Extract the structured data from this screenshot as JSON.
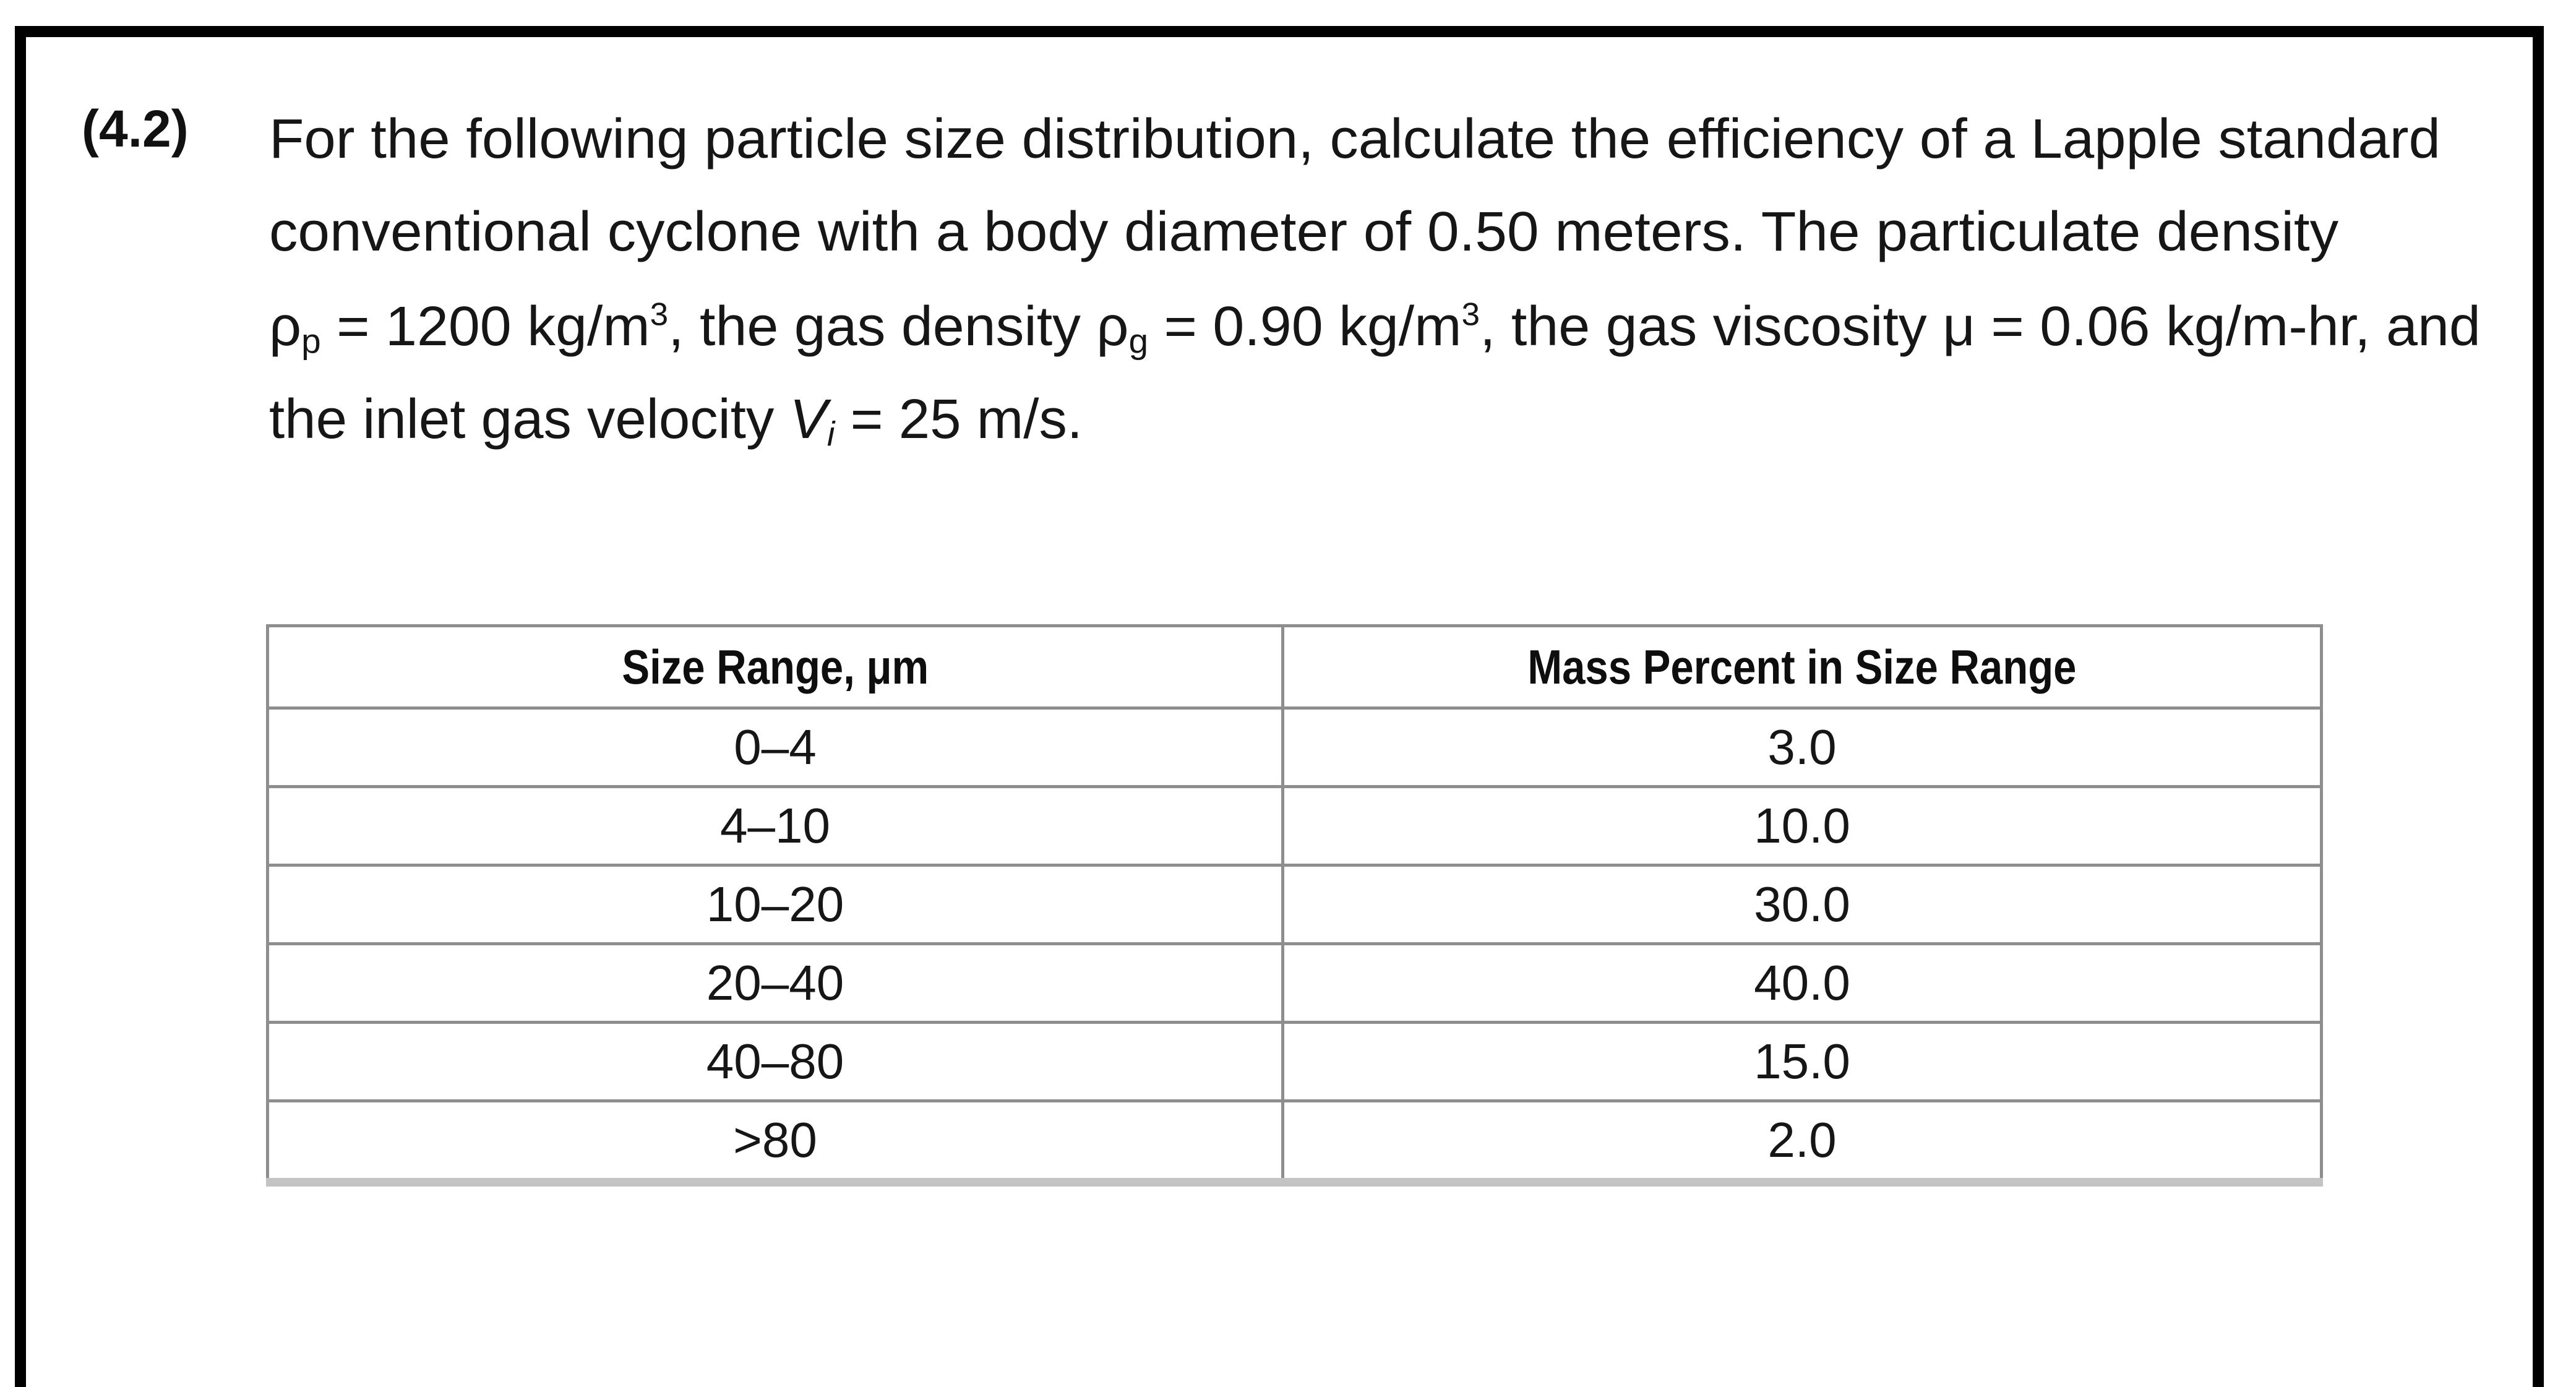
{
  "problem": {
    "label": "(4.2)",
    "lines": [
      [
        {
          "t": "For the following particle size distribution, calculate the efficiency of a Lapple standard"
        }
      ],
      [
        {
          "t": "conventional cyclone with a body diameter of 0.50 meters. The particulate density"
        }
      ],
      [
        {
          "t": "ρ"
        },
        {
          "t": "p",
          "sub": true
        },
        {
          "t": " = 1200 kg/m"
        },
        {
          "t": "3",
          "sup": true
        },
        {
          "t": ", the gas density ρ"
        },
        {
          "t": "g",
          "sub": true
        },
        {
          "t": " = 0.90 kg/m"
        },
        {
          "t": "3",
          "sup": true
        },
        {
          "t": ", the gas viscosity μ = 0.06 kg/m-hr, and"
        }
      ],
      [
        {
          "t": "the inlet gas velocity "
        },
        {
          "t": "V",
          "italic": true
        },
        {
          "t": "i",
          "sub": true,
          "italic": true
        },
        {
          "t": " = 25 m/s."
        }
      ]
    ],
    "line_widths": [
      3510,
      3345,
      3575,
      1315
    ],
    "line_tops": [
      175,
      325,
      478,
      628
    ]
  },
  "table": {
    "headers": [
      "Size Range, μm",
      "Mass Percent in Size Range"
    ],
    "rows": [
      [
        "0–4",
        "3.0"
      ],
      [
        "4–10",
        "10.0"
      ],
      [
        "10–20",
        "30.0"
      ],
      [
        "20–40",
        "40.0"
      ],
      [
        "40–80",
        "15.0"
      ],
      [
        ">80",
        "2.0"
      ]
    ]
  },
  "chart_data": {
    "type": "table",
    "title": "Particle size distribution",
    "columns": [
      "Size Range, μm",
      "Mass Percent in Size Range"
    ],
    "categories": [
      "0–4",
      "4–10",
      "10–20",
      "20–40",
      "40–80",
      ">80"
    ],
    "values": [
      3.0,
      10.0,
      30.0,
      40.0,
      15.0,
      2.0
    ]
  }
}
